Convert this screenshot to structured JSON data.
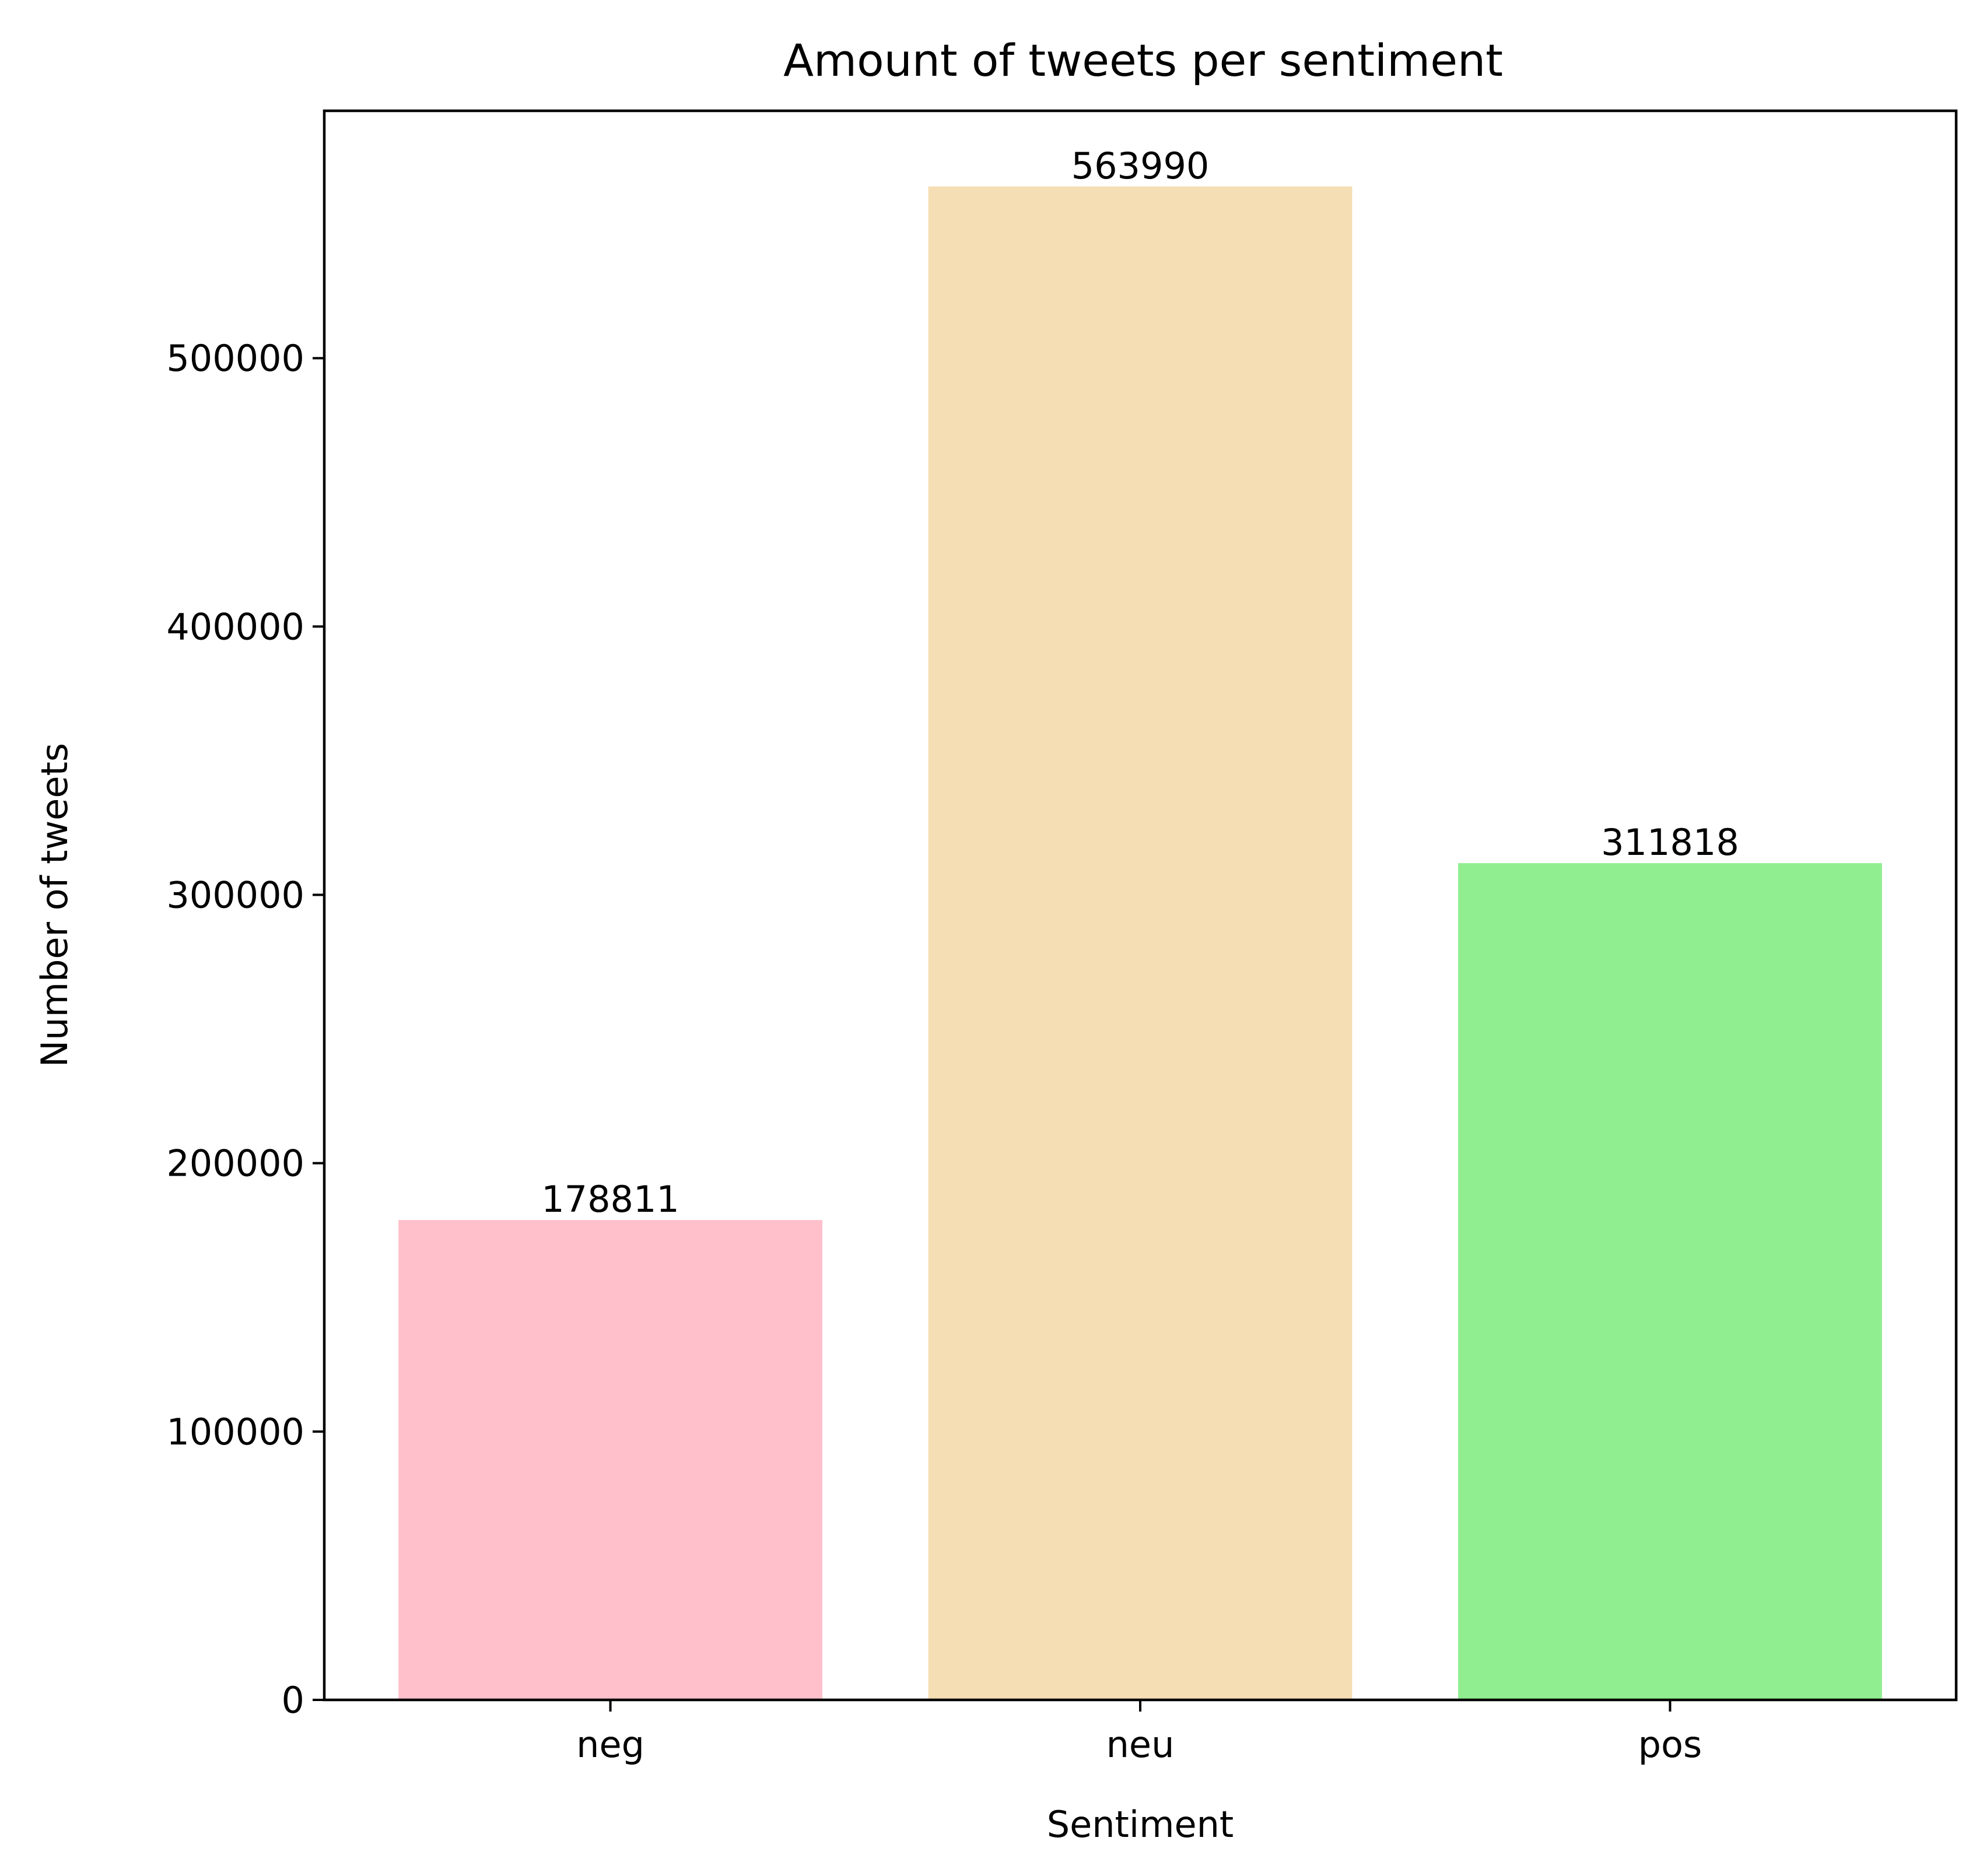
{
  "chart_data": {
    "type": "bar",
    "title": "Amount of tweets per sentiment",
    "xlabel": "Sentiment",
    "ylabel": "Number of tweets",
    "categories": [
      "neg",
      "neu",
      "pos"
    ],
    "values": [
      178811,
      563990,
      311818
    ],
    "data_labels": [
      "178811",
      "563990",
      "311818"
    ],
    "colors": [
      "#ffc0cb",
      "#f5deb3",
      "#90ee90"
    ],
    "ylim": [
      0,
      592190
    ],
    "yticks": [
      0,
      100000,
      200000,
      300000,
      400000,
      500000
    ],
    "ytick_labels": [
      "0",
      "100000",
      "200000",
      "300000",
      "400000",
      "500000"
    ],
    "grid": false,
    "legend": "none"
  }
}
